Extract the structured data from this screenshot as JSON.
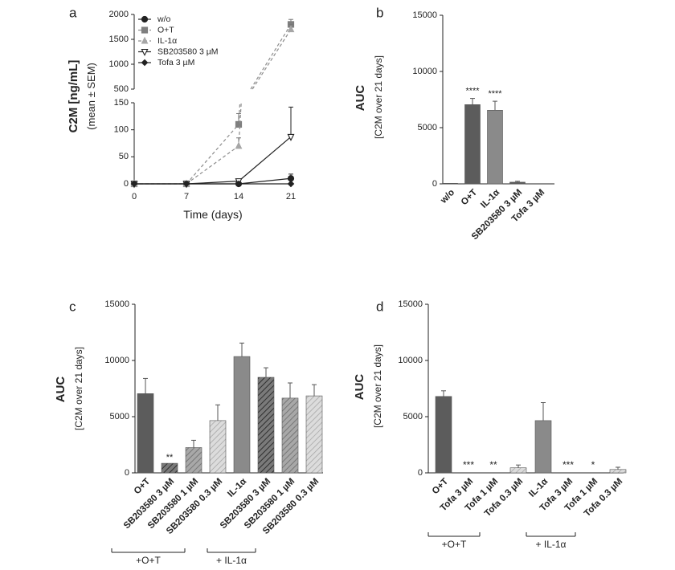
{
  "chart_data": [
    {
      "panel": "a",
      "type": "line",
      "xlabel": "Time (days)",
      "ylabel": "C2M [ng/mL]",
      "ylabel_sub": "(mean ± SEM)",
      "x": [
        0,
        7,
        14,
        21
      ],
      "x_ticks": [
        "0",
        "7",
        "14",
        "21"
      ],
      "y_ticks_lower": [
        "0",
        "50",
        "100",
        "150"
      ],
      "y_ticks_upper": [
        "500",
        "1000",
        "1500",
        "2000"
      ],
      "ylim_lower": [
        0,
        150
      ],
      "ylim_upper": [
        500,
        2000
      ],
      "series": [
        {
          "name": "w/o",
          "values": [
            0,
            0,
            0,
            10
          ],
          "err": [
            0,
            0,
            0,
            8
          ]
        },
        {
          "name": "O+T",
          "values": [
            0,
            0,
            110,
            1800
          ],
          "err": [
            0,
            0,
            20,
            100
          ]
        },
        {
          "name": "IL-1α",
          "values": [
            0,
            0,
            70,
            1700
          ],
          "err": [
            0,
            0,
            15,
            100
          ]
        },
        {
          "name": "SB203580 3 µM",
          "values": [
            0,
            0,
            5,
            87
          ],
          "err": [
            0,
            0,
            3,
            55
          ]
        },
        {
          "name": "Tofa 3 µM",
          "values": [
            0,
            0,
            0,
            0
          ],
          "err": [
            0,
            0,
            0,
            0
          ]
        }
      ],
      "legend": "top-left"
    },
    {
      "panel": "b",
      "type": "bar",
      "ylabel": "AUC",
      "ylabel_sub": "[C2M over 21 days]",
      "ylim": [
        0,
        15000
      ],
      "y_ticks": [
        "0",
        "5000",
        "10000",
        "15000"
      ],
      "categories": [
        "w/o",
        "O+T",
        "IL-1α",
        "SB203580 3 µM",
        "Tofa 3 µM"
      ],
      "values": [
        50,
        7050,
        6550,
        150,
        0
      ],
      "err": [
        0,
        550,
        800,
        80,
        0
      ],
      "annotations": [
        "",
        "****",
        "****",
        "",
        ""
      ]
    },
    {
      "panel": "c",
      "type": "bar",
      "ylabel": "AUC",
      "ylabel_sub": "[C2M over 21 days]",
      "ylim": [
        0,
        15000
      ],
      "y_ticks": [
        "0",
        "5000",
        "10000",
        "15000"
      ],
      "categories": [
        "O+T",
        "SB203580 3 µM",
        "SB203580 1 µM",
        "SB203580 0.3 µM",
        "IL-1α",
        "SB203580 3 µM",
        "SB203580 1 µM",
        "SB203580 0.3 µM"
      ],
      "values": [
        7050,
        850,
        2250,
        4650,
        10350,
        8500,
        6650,
        6850
      ],
      "err": [
        1350,
        0,
        650,
        1400,
        1200,
        850,
        1350,
        1000
      ],
      "annotations": [
        "",
        "**",
        "",
        "",
        "",
        "",
        "",
        ""
      ],
      "groups": [
        "+O+T",
        "+ IL-1α"
      ]
    },
    {
      "panel": "d",
      "type": "bar",
      "ylabel": "AUC",
      "ylabel_sub": "[C2M over 21 days]",
      "ylim": [
        0,
        15000
      ],
      "y_ticks": [
        "0",
        "5000",
        "10000",
        "15000"
      ],
      "categories": [
        "O+T",
        "Tofa 3 µM",
        "Tofa 1 µM",
        "Tofa 0.3 µM",
        "IL-1α",
        "Tofa 3 µM",
        "Tofa 1 µM",
        "Tofa 0.3 µM"
      ],
      "values": [
        6800,
        0,
        0,
        450,
        4650,
        0,
        0,
        300
      ],
      "err": [
        500,
        0,
        0,
        250,
        1600,
        0,
        0,
        200
      ],
      "annotations": [
        "",
        "***",
        "**",
        "",
        "",
        "***",
        "*",
        ""
      ],
      "groups": [
        "+O+T",
        "+ IL-1α"
      ]
    }
  ],
  "panel_labels": [
    "a",
    "b",
    "c",
    "d"
  ],
  "colors": {
    "dark": "#5c5c5c",
    "mid": "#8a8a8a",
    "light": "#c8c8c8",
    "line_dashed": "#8c8c8c",
    "axis": "#222222"
  }
}
